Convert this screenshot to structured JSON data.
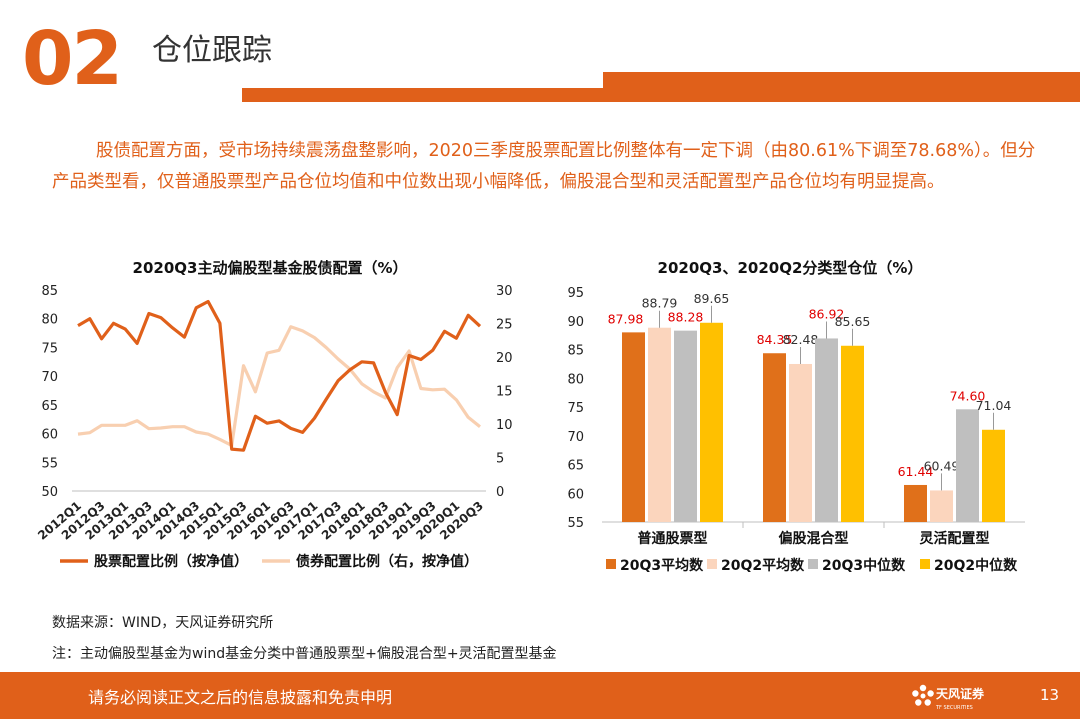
{
  "header": {
    "section_number": "02",
    "section_title": "仓位跟踪"
  },
  "intro_text": "股债配置方面，受市场持续震荡盘整影响，2020三季度股票配置比例整体有一定下调（由80.61%下调至78.68%）。但分产品类型看，仅普通股票型产品仓位均值和中位数出现小幅降低，偏股混合型和灵活配置型产品仓位均有明显提高。",
  "colors": {
    "accent": "#e0601a",
    "bond_line": "#f8cfb0",
    "q3_avg": "#e0701a",
    "q2_avg": "#fbd5bd",
    "q3_median": "#bfbfbf",
    "q2_median": "#ffc000"
  },
  "chart_data": [
    {
      "type": "line",
      "title": "2020Q3主动偏股型基金股债配置（%）",
      "x_tick_labels": [
        "2012Q1",
        "2012Q3",
        "2013Q1",
        "2013Q3",
        "2014Q1",
        "2014Q3",
        "2015Q1",
        "2015Q3",
        "2016Q1",
        "2016Q3",
        "2017Q1",
        "2017Q3",
        "2018Q1",
        "2018Q3",
        "2019Q1",
        "2019Q3",
        "2020Q1",
        "2020Q3"
      ],
      "x": [
        "2012Q1",
        "2012Q2",
        "2012Q3",
        "2012Q4",
        "2013Q1",
        "2013Q2",
        "2013Q3",
        "2013Q4",
        "2014Q1",
        "2014Q2",
        "2014Q3",
        "2014Q4",
        "2015Q1",
        "2015Q2",
        "2015Q3",
        "2015Q4",
        "2016Q1",
        "2016Q2",
        "2016Q3",
        "2016Q4",
        "2017Q1",
        "2017Q2",
        "2017Q3",
        "2017Q4",
        "2018Q1",
        "2018Q2",
        "2018Q3",
        "2018Q4",
        "2019Q1",
        "2019Q2",
        "2019Q3",
        "2019Q4",
        "2020Q1",
        "2020Q2",
        "2020Q3"
      ],
      "y_left_range": [
        50,
        85
      ],
      "y_left_ticks": [
        50,
        55,
        60,
        65,
        70,
        75,
        80,
        85
      ],
      "y_right_range": [
        0,
        30
      ],
      "y_right_ticks": [
        0,
        5,
        10,
        15,
        20,
        25,
        30
      ],
      "series": [
        {
          "name": "股票配置比例（按净值）",
          "axis": "left",
          "values": [
            78.8,
            80.0,
            76.5,
            79.2,
            78.2,
            75.7,
            80.9,
            80.2,
            78.4,
            76.8,
            81.9,
            83.0,
            79.2,
            57.3,
            57.1,
            63.0,
            61.8,
            62.2,
            60.9,
            60.2,
            62.7,
            66.0,
            69.2,
            71.1,
            72.5,
            72.3,
            67.2,
            63.3,
            73.6,
            72.9,
            74.5,
            77.8,
            76.6,
            80.6,
            78.7
          ]
        },
        {
          "name": "债券配置比例（右，按净值）",
          "axis": "right",
          "values": [
            8.5,
            8.7,
            9.8,
            9.8,
            9.8,
            10.5,
            9.3,
            9.4,
            9.6,
            9.6,
            8.8,
            8.5,
            7.7,
            6.8,
            18.7,
            14.8,
            20.6,
            21.0,
            24.5,
            23.9,
            22.9,
            21.4,
            19.7,
            18.2,
            16.0,
            14.8,
            13.9,
            18.4,
            20.9,
            15.3,
            15.1,
            15.2,
            13.6,
            11.0,
            9.6
          ]
        }
      ],
      "legend_position": "bottom"
    },
    {
      "type": "bar",
      "title": "2020Q3、2020Q2分类型仓位（%）",
      "categories": [
        "普通股票型",
        "偏股混合型",
        "灵活配置型"
      ],
      "y_range": [
        55,
        95
      ],
      "y_ticks": [
        55,
        60,
        65,
        70,
        75,
        80,
        85,
        90,
        95
      ],
      "series": [
        {
          "name": "20Q3平均数",
          "values": [
            87.98,
            84.35,
            61.44
          ],
          "labels": [
            "87.98",
            "84.35",
            "61.44"
          ]
        },
        {
          "name": "20Q2平均数",
          "values": [
            88.79,
            82.48,
            60.49
          ],
          "labels": [
            "88.79",
            "82.48",
            "60.49"
          ]
        },
        {
          "name": "20Q3中位数",
          "values": [
            88.28,
            86.92,
            74.6
          ],
          "labels": [
            "88.28",
            "86.92",
            "74.60"
          ]
        },
        {
          "name": "20Q2中位数",
          "values": [
            89.65,
            85.65,
            71.04
          ],
          "labels": [
            "89.65",
            "85.65",
            "71.04"
          ]
        }
      ],
      "legend_position": "bottom"
    }
  ],
  "source_text": "数据来源：WIND，天风证券研究所",
  "note_text": "注：主动偏股型基金为wind基金分类中普通股票型+偏股混合型+灵活配置型基金",
  "footer": {
    "disclaimer": "请务必阅读正文之后的信息披露和免责申明",
    "logo_text": "天风证券",
    "logo_subtext": "TF SECURITIES",
    "page_number": "13"
  }
}
